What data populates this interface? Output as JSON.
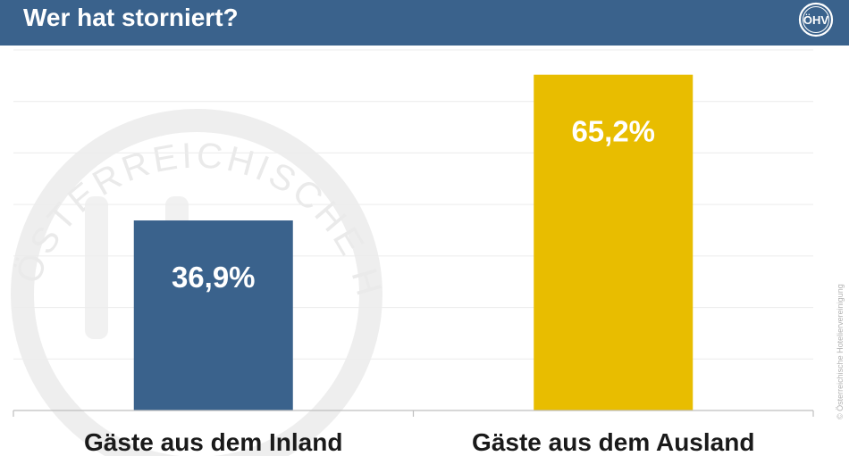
{
  "header": {
    "title": "Wer hat storniert?",
    "background_color": "#3a628c",
    "logo_icon": "oehv-logo-icon",
    "logo_text": "ÖHV"
  },
  "watermark": {
    "text": "ÖSTERREICHISCHE HOTELIERVEREINIGUNG",
    "icon": "oehv-seal-watermark"
  },
  "credit": "© Österreichische Hoteliervereinigung",
  "chart_data": {
    "type": "bar",
    "title": "Wer hat storniert?",
    "categories": [
      "Gäste aus dem Inland",
      "Gäste aus dem Ausland"
    ],
    "values": [
      36.9,
      65.2
    ],
    "value_labels": [
      "36,9%",
      "65,2%"
    ],
    "colors": [
      "#3a628c",
      "#e8bd00"
    ],
    "ylim": [
      0,
      70
    ],
    "grid": true,
    "xlabel": "",
    "ylabel": ""
  }
}
